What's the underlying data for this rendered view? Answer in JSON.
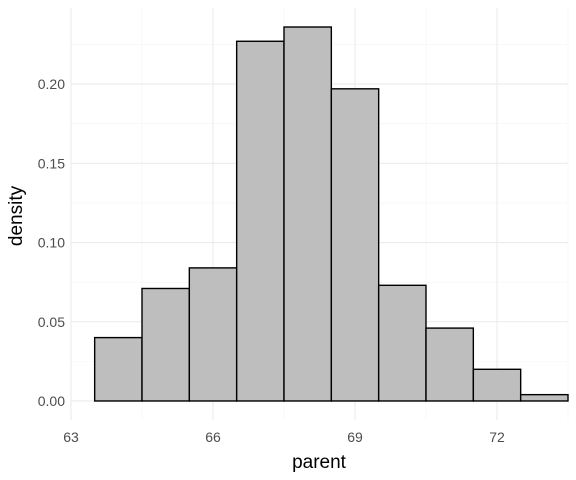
{
  "chart_data": {
    "type": "bar",
    "title": "",
    "xlabel": "parent",
    "ylabel": "density",
    "xlim": [
      63,
      73.5
    ],
    "ylim": [
      -0.012,
      0.248
    ],
    "x_ticks": [
      63,
      66,
      69,
      72
    ],
    "x_tick_labels": [
      "63",
      "66",
      "69",
      "72"
    ],
    "y_ticks": [
      0.0,
      0.05,
      0.1,
      0.15,
      0.2
    ],
    "y_tick_labels": [
      "0.00",
      "0.05",
      "0.10",
      "0.15",
      "0.20"
    ],
    "bins": [
      {
        "x0": 63.5,
        "x1": 64.5,
        "value": 0.04
      },
      {
        "x0": 64.5,
        "x1": 65.5,
        "value": 0.071
      },
      {
        "x0": 65.5,
        "x1": 66.5,
        "value": 0.084
      },
      {
        "x0": 66.5,
        "x1": 67.5,
        "value": 0.227
      },
      {
        "x0": 67.5,
        "x1": 68.5,
        "value": 0.236
      },
      {
        "x0": 68.5,
        "x1": 69.5,
        "value": 0.197
      },
      {
        "x0": 69.5,
        "x1": 70.5,
        "value": 0.073
      },
      {
        "x0": 70.5,
        "x1": 71.5,
        "value": 0.046
      },
      {
        "x0": 71.5,
        "x1": 72.5,
        "value": 0.02
      },
      {
        "x0": 72.5,
        "x1": 73.5,
        "value": 0.004
      }
    ],
    "bar_fill": "#bebebe",
    "bar_stroke": "#000000",
    "grid": true,
    "legend": "none"
  }
}
